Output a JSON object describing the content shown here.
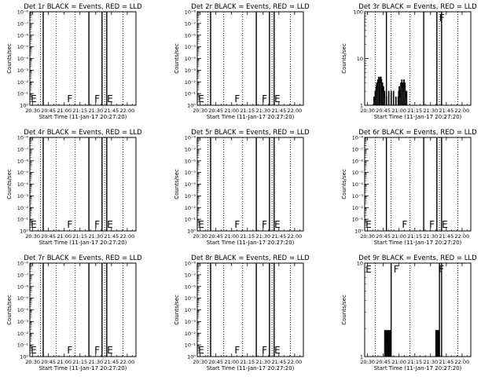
{
  "figure": {
    "background": "#ffffff",
    "foreground": "#000000",
    "lld_color": "#ff0000"
  },
  "chart_data": [
    {
      "type": "line",
      "title": "Det 1r BLACK = Events, RED = LLD",
      "xlabel": "Start Time (11-Jan-17 20:27:20)",
      "ylabel": "Counts/sec",
      "x_ticks": [
        "20:30",
        "20:45",
        "21:00",
        "21:15",
        "21:30",
        "21:45",
        "22:00"
      ],
      "x_tick_minutes": [
        150,
        165,
        180,
        195,
        210,
        225,
        240
      ],
      "xlim_minutes": [
        147.3,
        248.3
      ],
      "y_scale": "log",
      "ylim": [
        1,
        0.0001
      ],
      "y_ticks": [
        "10⁰",
        "10⁻¹",
        "10⁻²",
        "10⁻³",
        "10⁻⁴",
        "10⁻⁵",
        "10⁻⁶",
        "10⁻⁷",
        "10⁻⁸"
      ],
      "series": [],
      "solid_vlines_minutes": [
        160.0,
        203.5,
        216.0,
        220.5
      ],
      "dotted_vlines_minutes": [
        157.5,
        172.5,
        190.5,
        218.5,
        236.0
      ],
      "flag_labels": [
        {
          "text": "E",
          "x_minutes": 147.5
        },
        {
          "text": "F",
          "x_minutes": 182.0
        },
        {
          "text": "F",
          "x_minutes": 208.0
        },
        {
          "text": "E",
          "x_minutes": 220.0
        }
      ]
    },
    {
      "type": "line",
      "title": "Det 2r BLACK = Events, RED = LLD",
      "xlabel": "Start Time (11-Jan-17 20:27:20)",
      "ylabel": "Counts/sec",
      "x_ticks": [
        "20:30",
        "20:45",
        "21:00",
        "21:15",
        "21:30",
        "21:45",
        "22:00"
      ],
      "x_tick_minutes": [
        150,
        165,
        180,
        195,
        210,
        225,
        240
      ],
      "xlim_minutes": [
        147.3,
        248.3
      ],
      "y_scale": "log",
      "ylim": [
        1,
        0.0001
      ],
      "y_ticks": [
        "10⁰",
        "10⁻¹",
        "10⁻²",
        "10⁻³",
        "10⁻⁴",
        "10⁻⁵",
        "10⁻⁶",
        "10⁻⁷",
        "10⁻⁸"
      ],
      "series": [],
      "solid_vlines_minutes": [
        160.0,
        203.5,
        216.0,
        220.5
      ],
      "dotted_vlines_minutes": [
        157.5,
        172.5,
        190.5,
        218.5,
        236.0
      ],
      "flag_labels": [
        {
          "text": "E",
          "x_minutes": 147.5
        },
        {
          "text": "F",
          "x_minutes": 182.0
        },
        {
          "text": "F",
          "x_minutes": 208.0
        },
        {
          "text": "E",
          "x_minutes": 220.0
        }
      ]
    },
    {
      "type": "line",
      "title": "Det 3r BLACK = Events, RED = LLD",
      "xlabel": "Start Time (11-Jan-17 20:27:20)",
      "ylabel": "Counts/sec",
      "x_ticks": [
        "20:30",
        "20:45",
        "21:00",
        "21:15",
        "21:30",
        "21:45",
        "22:00"
      ],
      "x_tick_minutes": [
        150,
        165,
        180,
        195,
        210,
        225,
        240
      ],
      "xlim_minutes": [
        147.3,
        248.3
      ],
      "y_scale": "log",
      "ylim": [
        1,
        100
      ],
      "y_ticks": [
        "1",
        "10",
        "100"
      ],
      "series": [
        {
          "values": [
            [
              155.5,
              1
            ],
            [
              156.0,
              1.5
            ],
            [
              156.6,
              1.2
            ],
            [
              157.1,
              2
            ],
            [
              157.5,
              1.5
            ],
            [
              158.0,
              2.5
            ],
            [
              158.5,
              3
            ],
            [
              159.0,
              2
            ],
            [
              159.5,
              3.5
            ],
            [
              160.0,
              3
            ],
            [
              160.4,
              4
            ],
            [
              160.9,
              3
            ],
            [
              161.3,
              3.5
            ],
            [
              161.8,
              4
            ],
            [
              162.2,
              3
            ],
            [
              162.7,
              4
            ],
            [
              163.1,
              3.5
            ],
            [
              163.6,
              2.5
            ],
            [
              164.0,
              3
            ],
            [
              164.5,
              2
            ],
            [
              165.0,
              2.5
            ],
            [
              165.5,
              1.5
            ],
            [
              166.0,
              2
            ],
            [
              166.5,
              1
            ],
            [
              167.2,
              1
            ],
            [
              167.8,
              1.5
            ],
            [
              168.3,
              1
            ],
            [
              169.0,
              1
            ],
            [
              170.0,
              2
            ],
            [
              170.5,
              1
            ],
            [
              171.5,
              1
            ],
            [
              172.3,
              2
            ],
            [
              172.8,
              1
            ],
            [
              173.8,
              1
            ],
            [
              174.5,
              2
            ],
            [
              175.0,
              1
            ],
            [
              176.0,
              1
            ],
            [
              176.8,
              1.5
            ],
            [
              177.3,
              1
            ],
            [
              178.5,
              1
            ],
            [
              179.0,
              1.5
            ],
            [
              179.5,
              2
            ],
            [
              180.0,
              2.5
            ],
            [
              180.5,
              1.5
            ],
            [
              181.0,
              2
            ],
            [
              181.5,
              3
            ],
            [
              182.0,
              2.5
            ],
            [
              182.5,
              3.5
            ],
            [
              183.0,
              2.5
            ],
            [
              183.5,
              3
            ],
            [
              184.0,
              2
            ],
            [
              184.5,
              3.5
            ],
            [
              185.0,
              2.5
            ],
            [
              185.5,
              3
            ],
            [
              186.0,
              2
            ],
            [
              186.5,
              1.5
            ],
            [
              187.0,
              2
            ],
            [
              187.5,
              1
            ]
          ]
        }
      ],
      "solid_vlines_minutes": [
        168.0,
        203.5,
        216.0,
        220.5
      ],
      "dotted_vlines_minutes": [
        157.5,
        172.5,
        190.5,
        218.5,
        236.0
      ],
      "flag_labels": [
        {
          "text": "F",
          "x_minutes": 217.5
        }
      ]
    },
    {
      "type": "line",
      "title": "Det 4r BLACK = Events, RED = LLD",
      "xlabel": "Start Time (11-Jan-17 20:27:20)",
      "ylabel": "Counts/sec",
      "x_ticks": [
        "20:30",
        "20:45",
        "21:00",
        "21:15",
        "21:30",
        "21:45",
        "22:00"
      ],
      "x_tick_minutes": [
        150,
        165,
        180,
        195,
        210,
        225,
        240
      ],
      "xlim_minutes": [
        147.3,
        248.3
      ],
      "y_scale": "log",
      "ylim": [
        1,
        0.0001
      ],
      "y_ticks": [
        "10⁰",
        "10⁻¹",
        "10⁻²",
        "10⁻³",
        "10⁻⁴",
        "10⁻⁵",
        "10⁻⁶",
        "10⁻⁷",
        "10⁻⁸"
      ],
      "series": [],
      "solid_vlines_minutes": [
        160.0,
        203.5,
        216.0,
        220.5
      ],
      "dotted_vlines_minutes": [
        157.5,
        172.5,
        190.5,
        218.5,
        236.0
      ],
      "flag_labels": [
        {
          "text": "E",
          "x_minutes": 147.5
        },
        {
          "text": "F",
          "x_minutes": 182.0
        },
        {
          "text": "F",
          "x_minutes": 208.0
        },
        {
          "text": "E",
          "x_minutes": 220.0
        }
      ]
    },
    {
      "type": "line",
      "title": "Det 5r BLACK = Events, RED = LLD",
      "xlabel": "Start Time (11-Jan-17 20:27:20)",
      "ylabel": "Counts/sec",
      "x_ticks": [
        "20:30",
        "20:45",
        "21:00",
        "21:15",
        "21:30",
        "21:45",
        "22:00"
      ],
      "x_tick_minutes": [
        150,
        165,
        180,
        195,
        210,
        225,
        240
      ],
      "xlim_minutes": [
        147.3,
        248.3
      ],
      "y_scale": "log",
      "ylim": [
        1,
        0.0001
      ],
      "y_ticks": [
        "10⁰",
        "10⁻¹",
        "10⁻²",
        "10⁻³",
        "10⁻⁴",
        "10⁻⁵",
        "10⁻⁶",
        "10⁻⁷",
        "10⁻⁸"
      ],
      "series": [],
      "solid_vlines_minutes": [
        160.0,
        203.5,
        216.0,
        220.5
      ],
      "dotted_vlines_minutes": [
        157.5,
        172.5,
        190.5,
        218.5,
        236.0
      ],
      "flag_labels": [
        {
          "text": "E",
          "x_minutes": 147.5
        },
        {
          "text": "F",
          "x_minutes": 182.0
        },
        {
          "text": "F",
          "x_minutes": 208.0
        },
        {
          "text": "E",
          "x_minutes": 220.0
        }
      ]
    },
    {
      "type": "line",
      "title": "Det 6r BLACK = Events, RED = LLD",
      "xlabel": "Start Time (11-Jan-17 20:27:20)",
      "ylabel": "Counts/sec",
      "x_ticks": [
        "20:30",
        "20:45",
        "21:00",
        "21:15",
        "21:30",
        "21:45",
        "22:00"
      ],
      "x_tick_minutes": [
        150,
        165,
        180,
        195,
        210,
        225,
        240
      ],
      "xlim_minutes": [
        147.3,
        248.3
      ],
      "y_scale": "log",
      "ylim": [
        1,
        0.0001
      ],
      "y_ticks": [
        "10⁰",
        "10⁻¹",
        "10⁻²",
        "10⁻³",
        "10⁻⁴",
        "10⁻⁵",
        "10⁻⁶",
        "10⁻⁷",
        "10⁻⁸"
      ],
      "series": [],
      "solid_vlines_minutes": [
        168.0,
        203.5,
        216.0,
        220.5
      ],
      "dotted_vlines_minutes": [
        157.5,
        172.5,
        190.5,
        218.5,
        236.0
      ],
      "flag_labels": [
        {
          "text": "E",
          "x_minutes": 147.5
        },
        {
          "text": "F",
          "x_minutes": 182.0
        },
        {
          "text": "F",
          "x_minutes": 208.0
        },
        {
          "text": "E",
          "x_minutes": 220.0
        }
      ]
    },
    {
      "type": "line",
      "title": "Det 7r BLACK = Events, RED = LLD",
      "xlabel": "Start Time (11-Jan-17 20:27:20)",
      "ylabel": "Counts/sec",
      "x_ticks": [
        "20:30",
        "20:45",
        "21:00",
        "21:15",
        "21:30",
        "21:45",
        "22:00"
      ],
      "x_tick_minutes": [
        150,
        165,
        180,
        195,
        210,
        225,
        240
      ],
      "xlim_minutes": [
        147.3,
        248.3
      ],
      "y_scale": "log",
      "ylim": [
        1,
        0.0001
      ],
      "y_ticks": [
        "10⁰",
        "10⁻¹",
        "10⁻²",
        "10⁻³",
        "10⁻⁴",
        "10⁻⁵",
        "10⁻⁶",
        "10⁻⁷",
        "10⁻⁸"
      ],
      "series": [],
      "solid_vlines_minutes": [
        160.0,
        203.5,
        216.0,
        220.5
      ],
      "dotted_vlines_minutes": [
        157.5,
        172.5,
        190.5,
        218.5,
        236.0
      ],
      "flag_labels": [
        {
          "text": "E",
          "x_minutes": 147.5
        },
        {
          "text": "F",
          "x_minutes": 182.0
        },
        {
          "text": "F",
          "x_minutes": 208.0
        },
        {
          "text": "E",
          "x_minutes": 220.0
        }
      ]
    },
    {
      "type": "line",
      "title": "Det 8r BLACK = Events, RED = LLD",
      "xlabel": "Start Time (11-Jan-17 20:27:20)",
      "ylabel": "Counts/sec",
      "x_ticks": [
        "20:30",
        "20:45",
        "21:00",
        "21:15",
        "21:30",
        "21:45",
        "22:00"
      ],
      "x_tick_minutes": [
        150,
        165,
        180,
        195,
        210,
        225,
        240
      ],
      "xlim_minutes": [
        147.3,
        248.3
      ],
      "y_scale": "log",
      "ylim": [
        1,
        0.0001
      ],
      "y_ticks": [
        "10⁰",
        "10⁻¹",
        "10⁻²",
        "10⁻³",
        "10⁻⁴",
        "10⁻⁵",
        "10⁻⁶",
        "10⁻⁷",
        "10⁻⁸"
      ],
      "series": [],
      "solid_vlines_minutes": [
        160.0,
        203.5,
        216.0,
        220.5
      ],
      "dotted_vlines_minutes": [
        157.5,
        172.5,
        190.5,
        218.5,
        236.0
      ],
      "flag_labels": [
        {
          "text": "E",
          "x_minutes": 147.5
        },
        {
          "text": "F",
          "x_minutes": 182.0
        },
        {
          "text": "F",
          "x_minutes": 208.0
        },
        {
          "text": "E",
          "x_minutes": 220.0
        }
      ]
    },
    {
      "type": "line",
      "title": "Det 9r BLACK = Events, RED = LLD",
      "xlabel": "Start Time (11-Jan-17 20:27:20)",
      "ylabel": "Counts/sec",
      "x_ticks": [
        "20:30",
        "20:45",
        "21:00",
        "21:15",
        "21:30",
        "21:45",
        "22:00"
      ],
      "x_tick_minutes": [
        150,
        165,
        180,
        195,
        210,
        225,
        240
      ],
      "xlim_minutes": [
        147.3,
        248.3
      ],
      "y_scale": "log",
      "ylim": [
        1,
        10
      ],
      "y_ticks": [
        "1",
        "10"
      ],
      "series": [
        {
          "values": [
            [
              165.8,
              1
            ],
            [
              166.2,
              1.9
            ],
            [
              166.8,
              1.9
            ],
            [
              167.3,
              1
            ],
            [
              167.8,
              1.9
            ],
            [
              168.3,
              1.4
            ],
            [
              168.8,
              1.9
            ],
            [
              169.3,
              1
            ],
            [
              169.8,
              1.9
            ],
            [
              170.3,
              1
            ],
            [
              170.8,
              1.9
            ],
            [
              171.3,
              1.9
            ],
            [
              171.8,
              1
            ],
            [
              214.5,
              1
            ],
            [
              214.9,
              1.9
            ],
            [
              215.4,
              1
            ],
            [
              215.8,
              1.9
            ],
            [
              216.3,
              1.4
            ],
            [
              216.8,
              1.9
            ],
            [
              217.2,
              1
            ],
            [
              217.6,
              1.9
            ],
            [
              218.1,
              1
            ]
          ]
        }
      ],
      "solid_vlines_minutes": [
        172.5,
        218.5,
        220.5
      ],
      "dotted_vlines_minutes": [
        157.5,
        190.5,
        236.0
      ],
      "flag_labels": [
        {
          "text": "E",
          "x_minutes": 147.5
        },
        {
          "text": "F",
          "x_minutes": 174.0
        },
        {
          "text": "F",
          "x_minutes": 217.0
        }
      ]
    }
  ]
}
